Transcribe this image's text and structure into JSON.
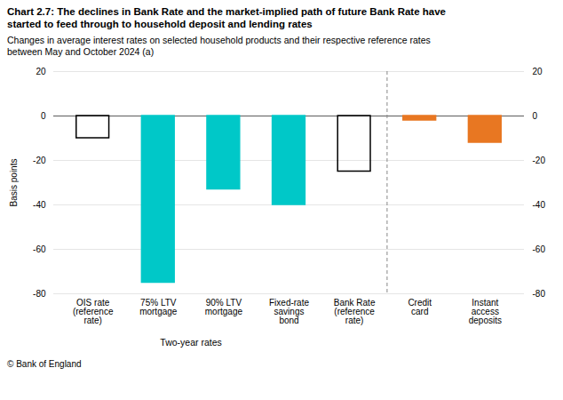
{
  "chart_data": {
    "type": "bar",
    "title": "Chart 2.7: The declines in Bank Rate and the market-implied path of future Bank Rate have\nstarted to feed through to household deposit and lending rates",
    "subtitle": "Changes in average interest rates on selected household products and their respective reference rates\nbetween May and October 2024 (a)",
    "ylabel": "Basis points",
    "categories": [
      "OIS rate\n(reference\nrate)",
      "75% LTV\nmortgage",
      "90% LTV\nmortgage",
      "Fixed-rate\nsavings\nbond",
      "Bank Rate\n(reference\nrate)",
      "Credit\ncard",
      "Instant\naccess\ndeposits"
    ],
    "values": [
      -10,
      -75,
      -33,
      -40,
      -25,
      -2,
      -12
    ],
    "colors": [
      "none",
      "#00C8C8",
      "#00C8C8",
      "#00C8C8",
      "none",
      "#E87722",
      "#E87722"
    ],
    "ylim": [
      -80,
      20
    ],
    "yticks": [
      -80,
      -60,
      -40,
      -20,
      0,
      20
    ],
    "grid": true,
    "annotations": [
      {
        "text": "Two-year rates",
        "categories": [
          "OIS rate\n(reference\nrate)",
          "75% LTV\nmortgage",
          "90% LTV\nmortgage",
          "Fixed-rate\nsavings\nbond"
        ]
      },
      {
        "line_style": "dashed",
        "between": [
          "Bank Rate\n(reference\nrate)",
          "Credit\ncard"
        ]
      },
      {
        "text": "© Bank of England",
        "position": "footer"
      }
    ]
  }
}
